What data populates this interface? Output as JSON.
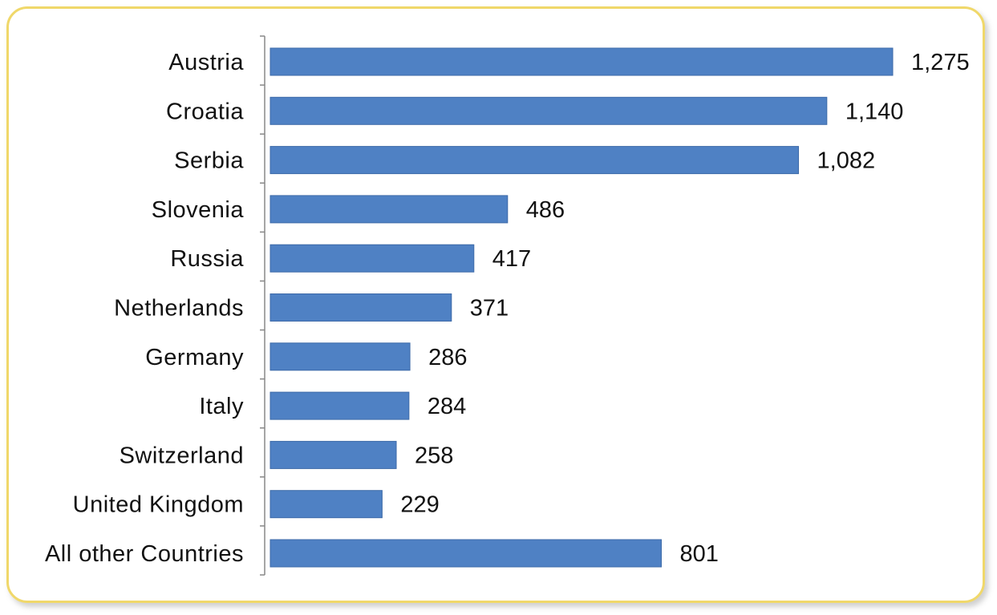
{
  "chart_data": {
    "type": "bar",
    "orientation": "horizontal",
    "title": "",
    "xlabel": "",
    "ylabel": "",
    "categories": [
      "Austria",
      "Croatia",
      "Serbia",
      "Slovenia",
      "Russia",
      "Netherlands",
      "Germany",
      "Italy",
      "Switzerland",
      "United Kingdom",
      "All other Countries"
    ],
    "values": [
      1275,
      1140,
      1082,
      486,
      417,
      371,
      286,
      284,
      258,
      229,
      801
    ],
    "value_labels": [
      "1,275",
      "1,140",
      "1,082",
      "486",
      "417",
      "371",
      "286",
      "284",
      "258",
      "229",
      "801"
    ],
    "xlim": [
      0,
      1275
    ],
    "grid": false,
    "legend": "none",
    "colors": {
      "bar": "#4f81c4",
      "bar_edge": "#3d6aa8",
      "frame_border": "#f0d86a",
      "axis": "#888888"
    }
  }
}
